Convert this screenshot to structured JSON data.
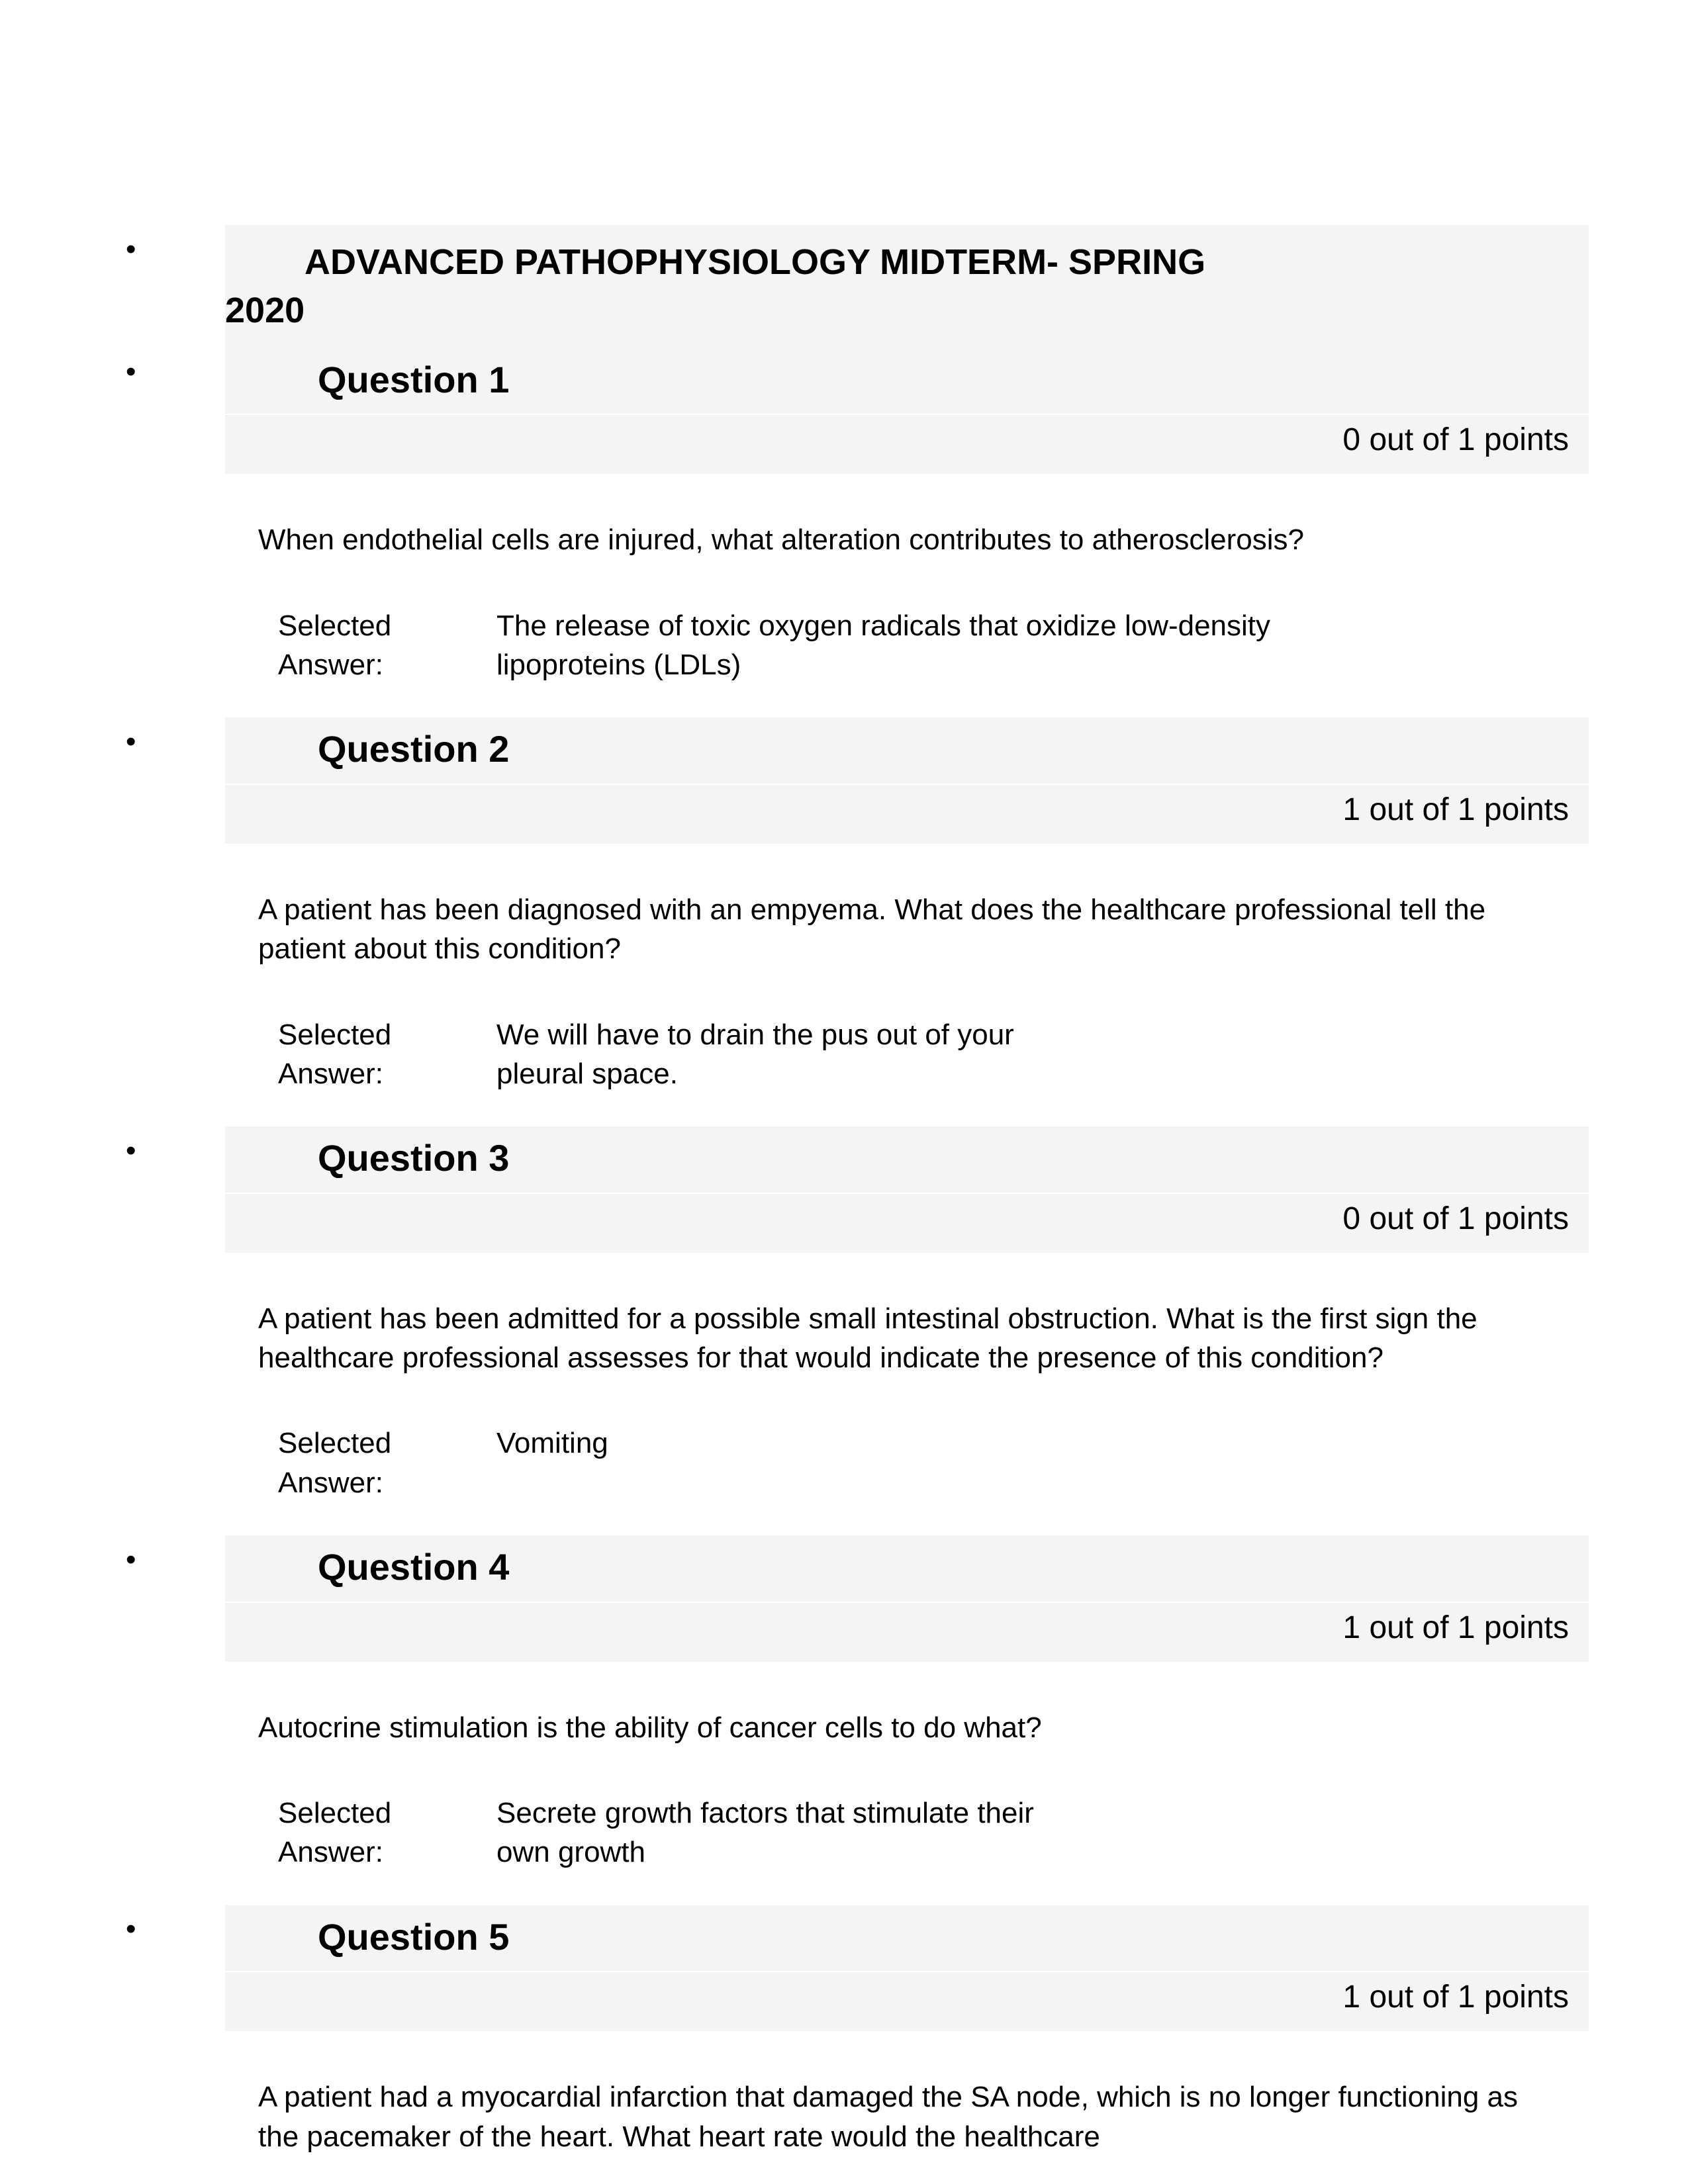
{
  "doc": {
    "title_line1": "ADVANCED PATHOPHYSIOLOGY MIDTERM- SPRING",
    "title_line2": "2020",
    "selected_answer_label": "Selected Answer:",
    "questions": [
      {
        "label": "Question 1",
        "points": "0 out of 1 points",
        "prompt": "When endothelial cells are injured, what alteration contributes to atherosclerosis?",
        "answer": "The release of toxic oxygen radicals that oxidize low-density lipoproteins (LDLs)",
        "answer_width": "normal"
      },
      {
        "label": "Question 2",
        "points": "1 out of 1 points",
        "prompt": "A patient has been diagnosed with an empyema. What does the healthcare professional tell the patient about this condition?",
        "answer": "We will have to drain the pus out of your pleural space.",
        "answer_width": "narrow"
      },
      {
        "label": "Question 3",
        "points": "0 out of 1 points",
        "prompt": "A patient has been admitted for a possible small intestinal obstruction. What is the first sign the healthcare professional assesses for that would indicate the presence of this condition?",
        "answer": "Vomiting",
        "answer_width": "xnarrow"
      },
      {
        "label": "Question 4",
        "points": "1 out of 1 points",
        "prompt": "Autocrine stimulation is the ability of cancer cells to do what?",
        "answer": "Secrete growth factors that stimulate their own growth",
        "answer_width": "narrow"
      },
      {
        "label": "Question 5",
        "points": "1 out of 1 points",
        "prompt": "A patient had a myocardial infarction that damaged the SA node, which is no longer functioning as the pacemaker of the heart. What heart rate would the healthcare",
        "answer": "",
        "answer_width": "normal"
      }
    ]
  }
}
